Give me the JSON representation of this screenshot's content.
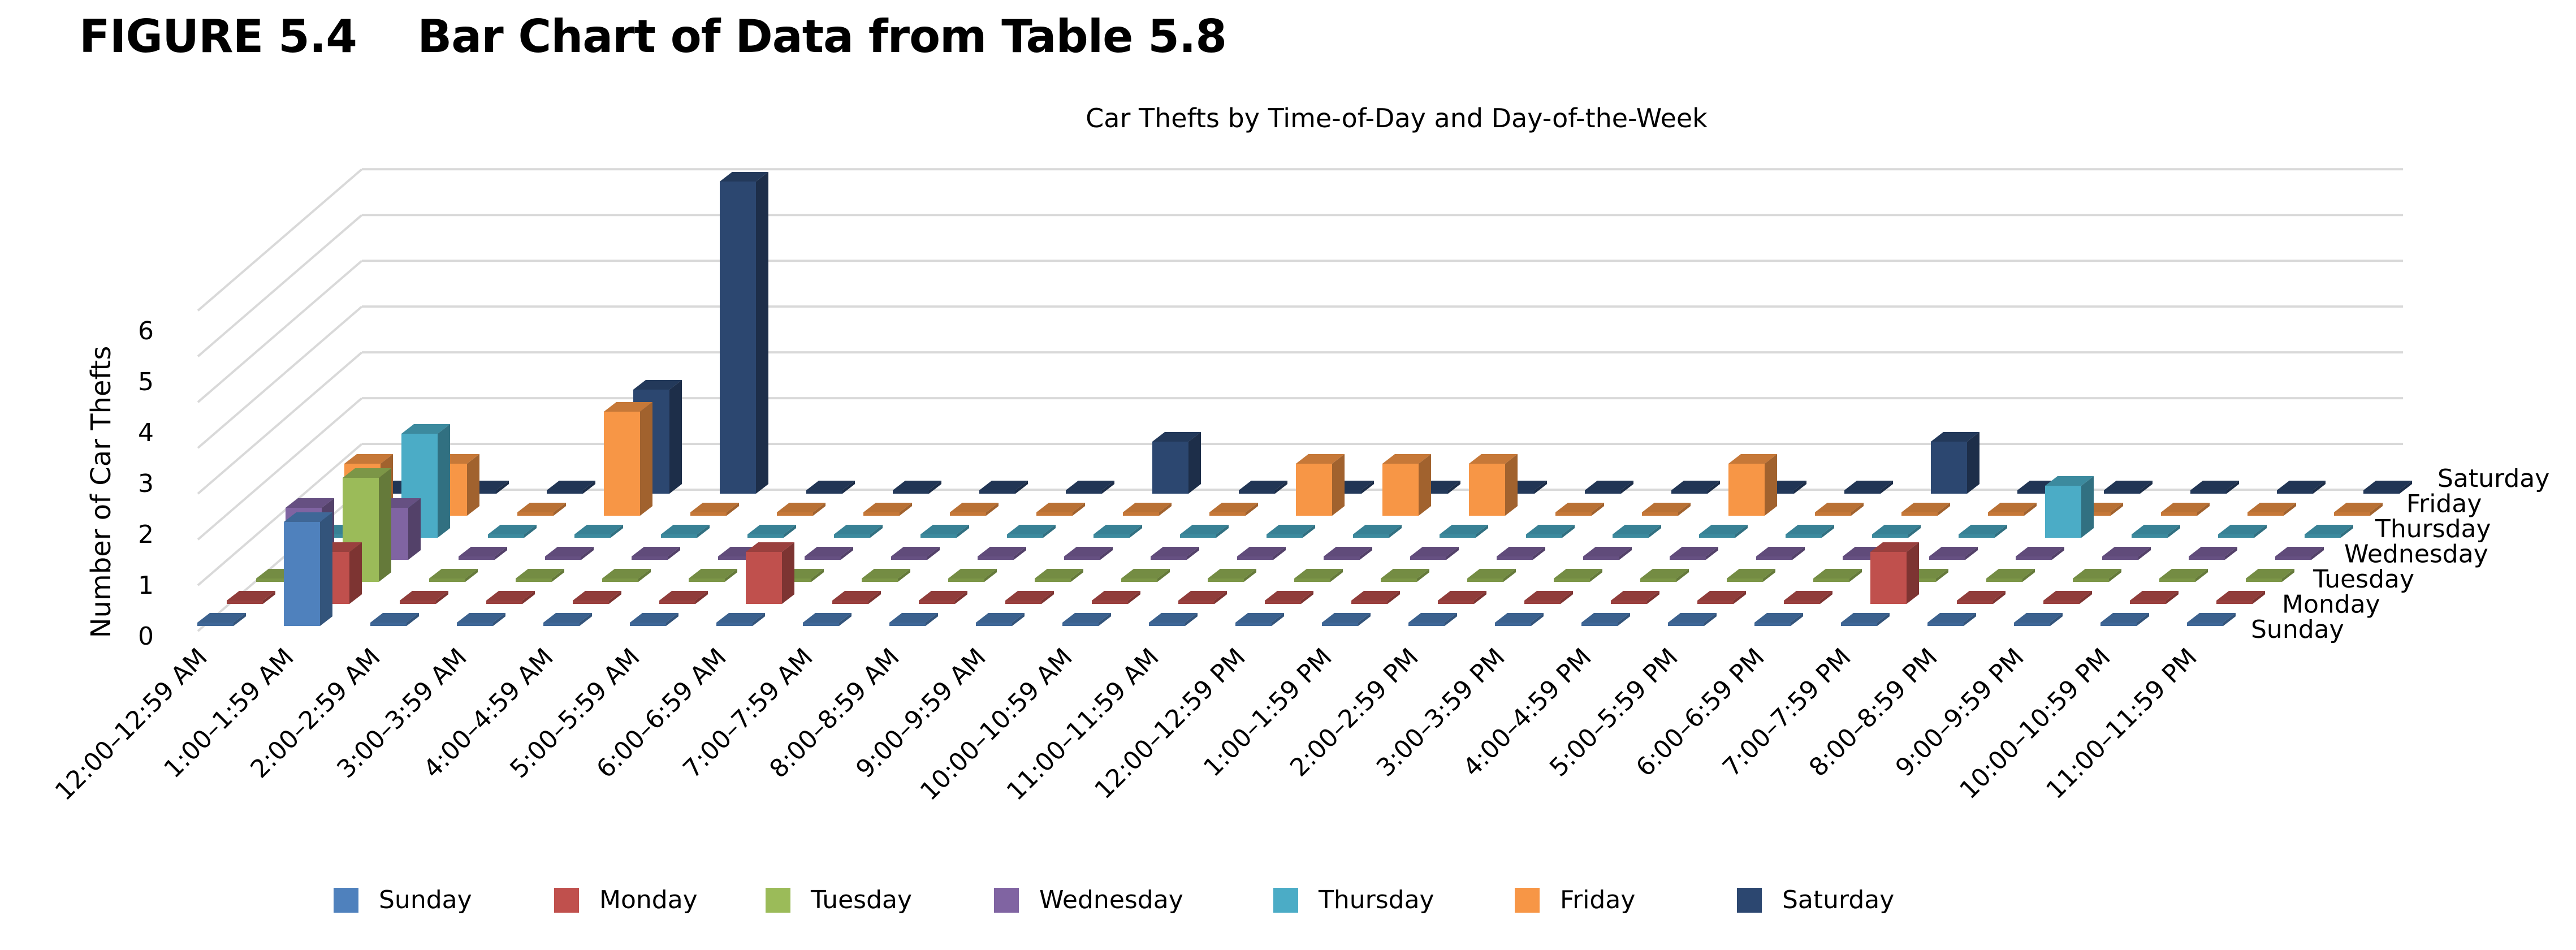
{
  "figure": {
    "title": "FIGURE 5.4    Bar Chart of Data from Table 5.8"
  },
  "chart_data": {
    "type": "bar",
    "subtype": "3d-column",
    "title": "Car Thefts by Time-of-Day and Day-of-the-Week",
    "ylabel": "Number of Car Thefts",
    "xlabel": "",
    "ylim": [
      0,
      6
    ],
    "yticks": [
      "0",
      "1",
      "2",
      "3",
      "4",
      "5",
      "6"
    ],
    "grid": true,
    "legend_position": "bottom",
    "categories": [
      "12:00–12:59 AM",
      "1:00–1:59 AM",
      "2:00–2:59 AM",
      "3:00–3:59 AM",
      "4:00–4:59 AM",
      "5:00–5:59 AM",
      "6:00–6:59 AM",
      "7:00–7:59 AM",
      "8:00–8:59 AM",
      "9:00–9:59 AM",
      "10:00–10:59 AM",
      "11:00–11:59 AM",
      "12:00–12:59 PM",
      "1:00–1:59 PM",
      "2:00–2:59 PM",
      "3:00–3:59 PM",
      "4:00–4:59 PM",
      "5:00–5:59 PM",
      "6:00–6:59 PM",
      "7:00–7:59 PM",
      "8:00–8:59 PM",
      "9:00–9:59 PM",
      "10:00–10:59 PM",
      "11:00–11:59 PM"
    ],
    "series": [
      {
        "name": "Sunday",
        "color": "#4f81bd",
        "values": [
          0,
          2,
          0,
          0,
          0,
          0,
          0,
          0,
          0,
          0,
          0,
          0,
          0,
          0,
          0,
          0,
          0,
          0,
          0,
          0,
          0,
          0,
          0,
          0
        ]
      },
      {
        "name": "Monday",
        "color": "#c0504d",
        "values": [
          0,
          1,
          0,
          0,
          0,
          0,
          1,
          0,
          0,
          0,
          0,
          0,
          0,
          0,
          0,
          0,
          0,
          0,
          0,
          1,
          0,
          0,
          0,
          0
        ]
      },
      {
        "name": "Tuesday",
        "color": "#9bbb59",
        "values": [
          0,
          2,
          0,
          0,
          0,
          0,
          0,
          0,
          0,
          0,
          0,
          0,
          0,
          0,
          0,
          0,
          0,
          0,
          0,
          0,
          0,
          0,
          0,
          0
        ]
      },
      {
        "name": "Wednesday",
        "color": "#8064a2",
        "values": [
          1,
          1,
          0,
          0,
          0,
          0,
          0,
          0,
          0,
          0,
          0,
          0,
          0,
          0,
          0,
          0,
          0,
          0,
          0,
          0,
          0,
          0,
          0,
          0
        ]
      },
      {
        "name": "Thursday",
        "color": "#4bacc6",
        "values": [
          0,
          2,
          0,
          0,
          0,
          0,
          0,
          0,
          0,
          0,
          0,
          0,
          0,
          0,
          0,
          0,
          0,
          0,
          0,
          0,
          1,
          0,
          0,
          0
        ]
      },
      {
        "name": "Friday",
        "color": "#f79646",
        "values": [
          1,
          1,
          0,
          2,
          0,
          0,
          0,
          0,
          0,
          0,
          0,
          1,
          1,
          1,
          0,
          0,
          1,
          0,
          0,
          0,
          0,
          0,
          0,
          0
        ]
      },
      {
        "name": "Saturday",
        "color": "#2c4770",
        "values": [
          0,
          0,
          0,
          2,
          6,
          0,
          0,
          0,
          0,
          1,
          0,
          0,
          0,
          0,
          0,
          0,
          0,
          0,
          1,
          0,
          0,
          0,
          0,
          0
        ]
      }
    ]
  }
}
